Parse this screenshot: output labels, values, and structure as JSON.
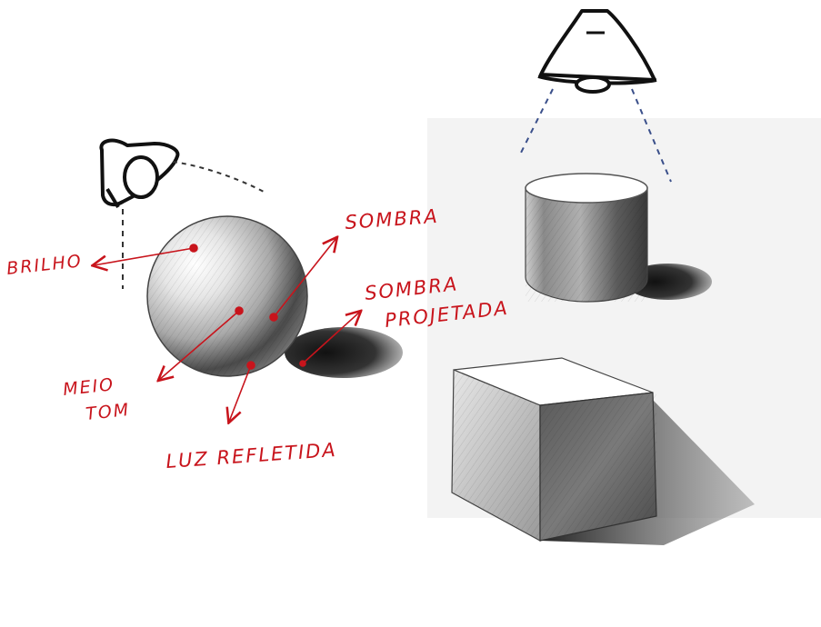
{
  "labels": {
    "brilho": "BRILHO",
    "sombra": "SOMBRA",
    "sombra_projetada_line1": "SOMBRA",
    "sombra_projetada_line2": "PROJETADA",
    "meio_tom_line1": "MEIO",
    "meio_tom_line2": "TOM",
    "luz_refletida": "LUZ REFLETIDA"
  },
  "colors": {
    "annotation": "#c8141c",
    "pencil": "#1a1a1a",
    "lamp_dash_left": "#333333",
    "lamp_dash_right": "#3a4f8a",
    "paper": "#ffffff",
    "background_panel": "#f3f3f3"
  },
  "objects": [
    "sphere",
    "cylinder",
    "cube",
    "lamp-left",
    "lamp-top"
  ]
}
